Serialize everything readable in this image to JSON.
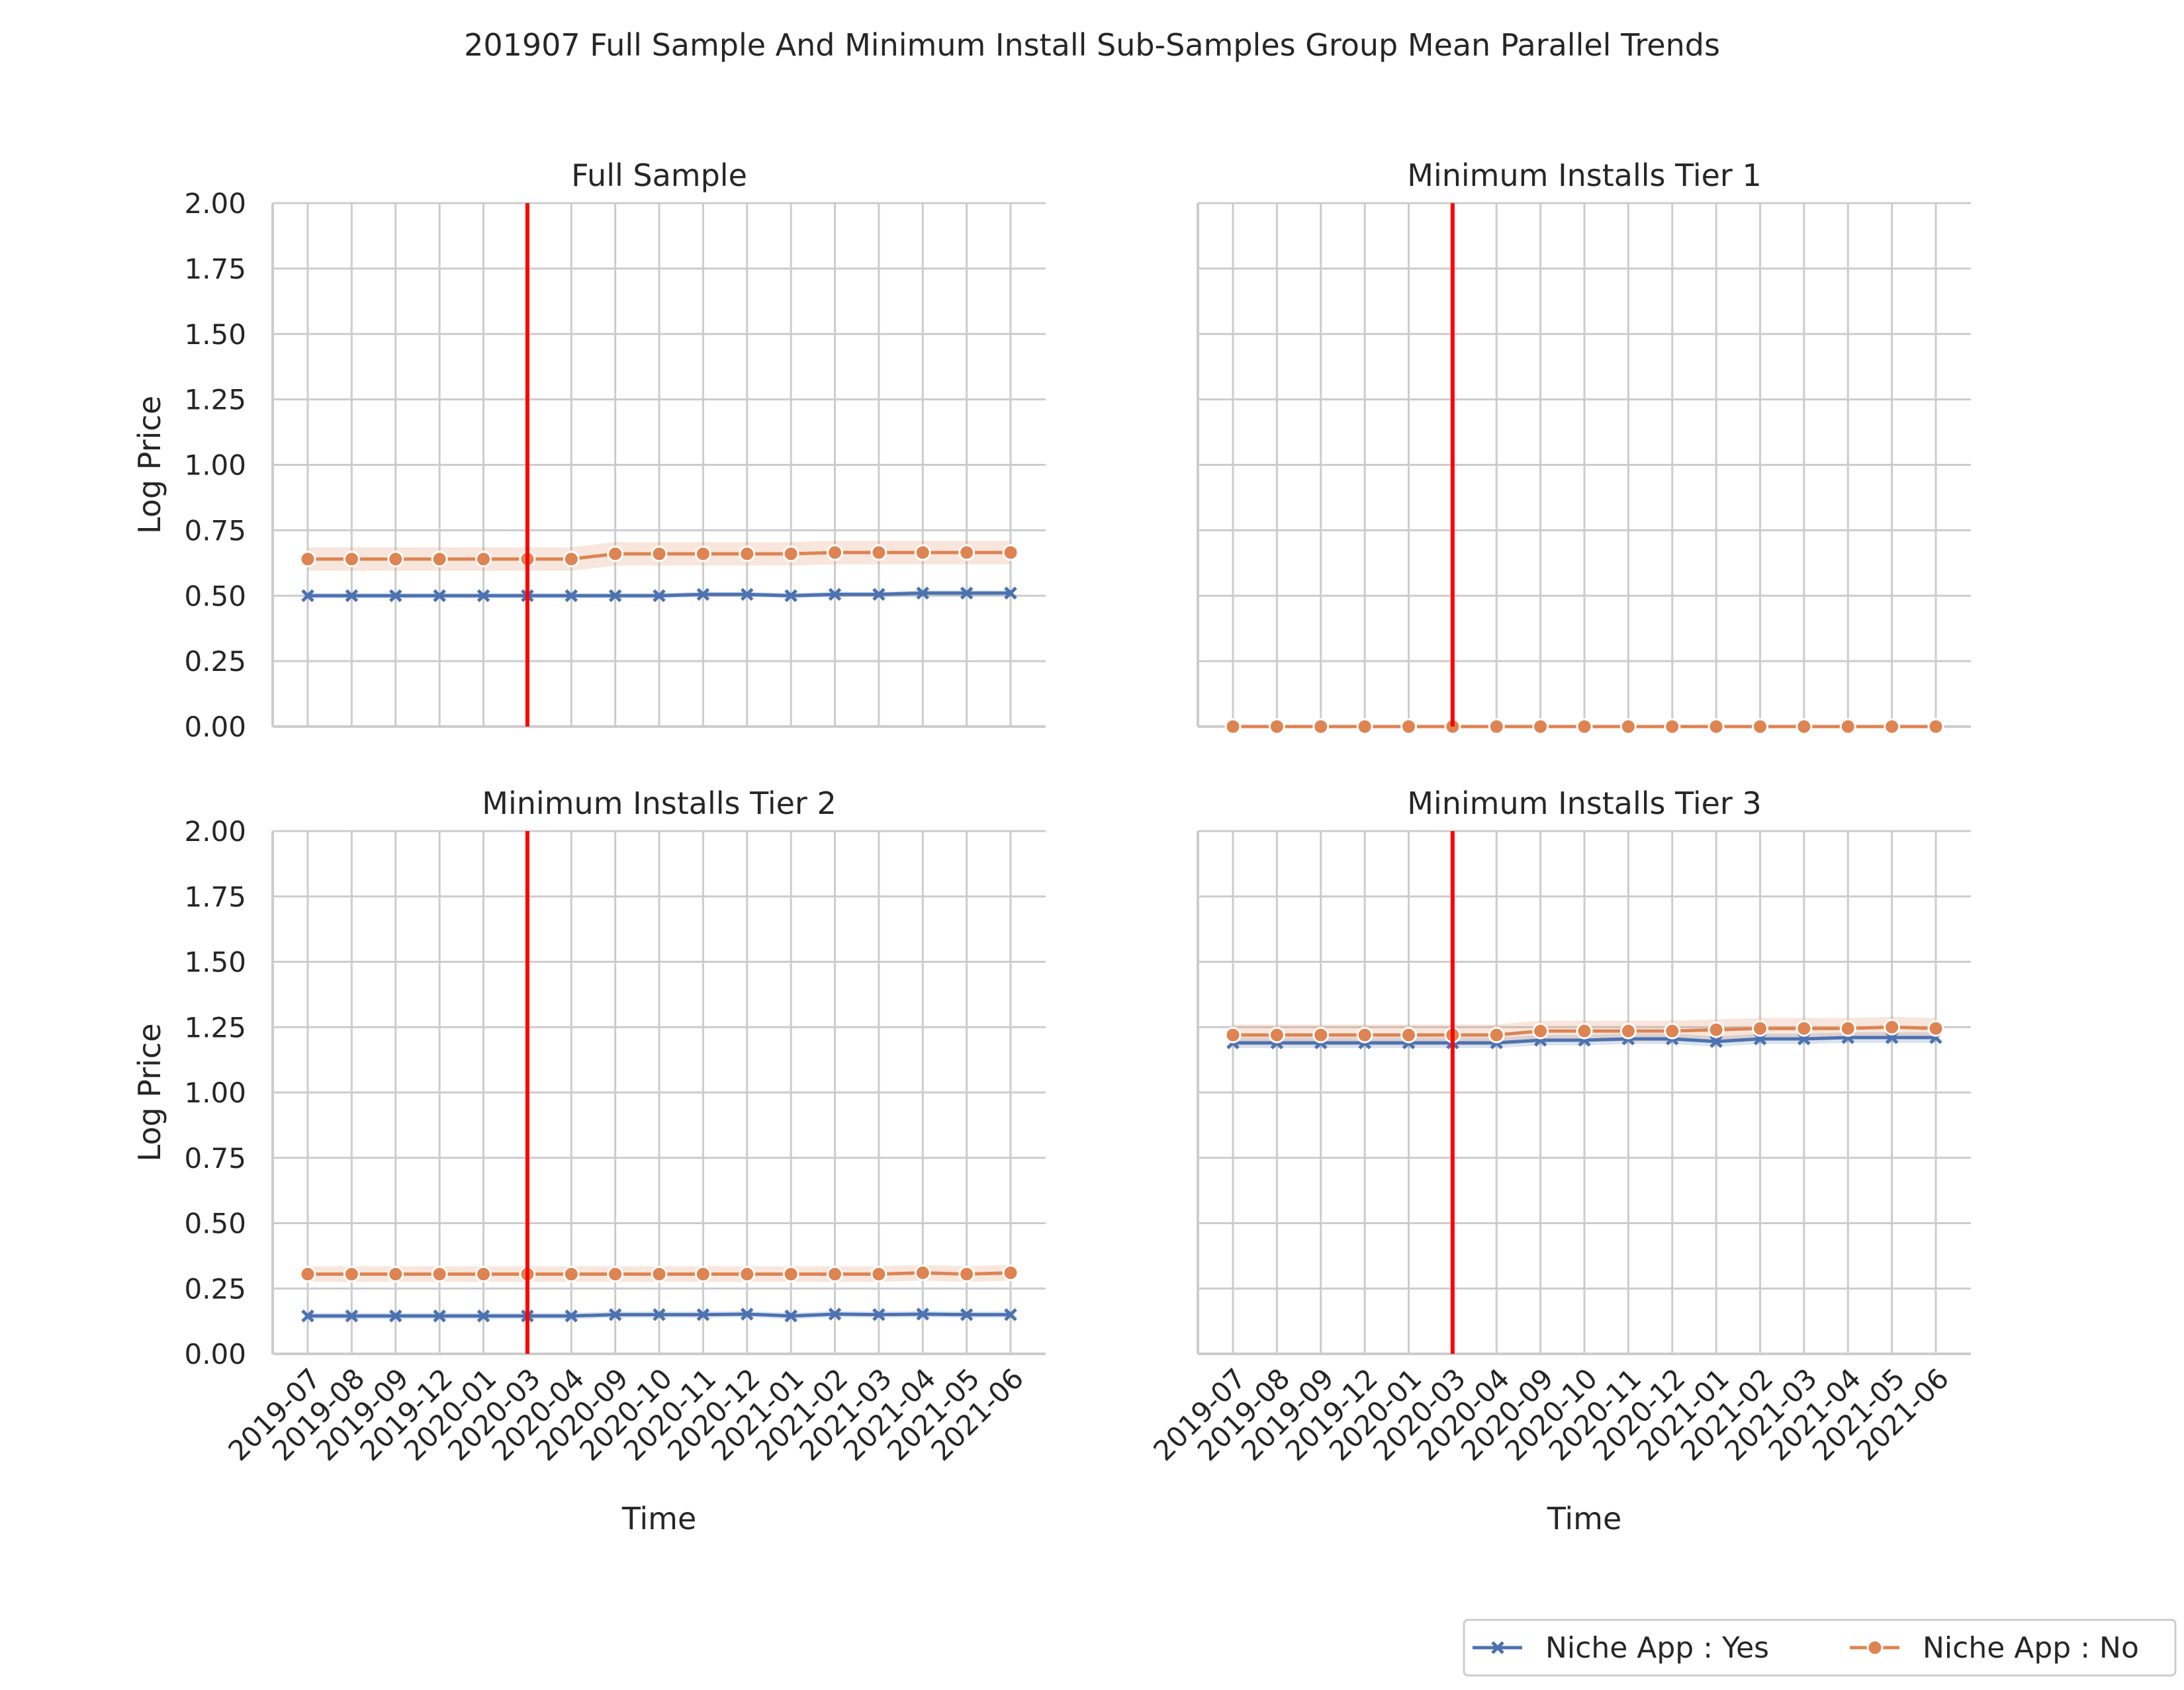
{
  "figure": {
    "title": "201907 Full Sample And Minimum Install Sub-Samples Group Mean Parallel Trends"
  },
  "colors": {
    "yes": "#4c72b0",
    "no": "#dd8452",
    "treatment_line": "#ff0000",
    "grid": "#cccccc"
  },
  "legend": {
    "placement": "bottom-right",
    "items": [
      {
        "label": "Niche App : Yes",
        "marker": "x",
        "color": "#4c72b0"
      },
      {
        "label": "Niche App : No",
        "marker": "circle",
        "color": "#dd8452"
      }
    ]
  },
  "chart_data": [
    {
      "type": "line",
      "title": "Full Sample",
      "xlabel": "",
      "ylabel": "Log Price",
      "ylim": [
        0,
        2
      ],
      "yticks": [
        "0.00",
        "0.25",
        "0.50",
        "0.75",
        "1.00",
        "1.25",
        "1.50",
        "1.75",
        "2.00"
      ],
      "grid": true,
      "x": [
        "2019-07",
        "2019-08",
        "2019-09",
        "2019-12",
        "2020-01",
        "2020-03",
        "2020-04",
        "2020-09",
        "2020-10",
        "2020-11",
        "2020-12",
        "2021-01",
        "2021-02",
        "2021-03",
        "2021-04",
        "2021-05",
        "2021-06"
      ],
      "show_xticklabels": false,
      "treatment_x": "2020-03",
      "series": [
        {
          "name": "Niche App : Yes",
          "values": [
            0.5,
            0.5,
            0.5,
            0.5,
            0.5,
            0.5,
            0.5,
            0.5,
            0.5,
            0.505,
            0.505,
            0.5,
            0.505,
            0.505,
            0.51,
            0.51,
            0.51
          ],
          "ci": 0.01
        },
        {
          "name": "Niche App : No",
          "values": [
            0.64,
            0.64,
            0.64,
            0.64,
            0.64,
            0.64,
            0.64,
            0.66,
            0.66,
            0.66,
            0.66,
            0.66,
            0.665,
            0.665,
            0.665,
            0.665,
            0.665
          ],
          "ci": 0.045
        }
      ]
    },
    {
      "type": "line",
      "title": "Minimum Installs Tier 1",
      "xlabel": "",
      "ylabel": "",
      "ylim": [
        0,
        2
      ],
      "yticks": [],
      "grid": true,
      "x": [
        "2019-07",
        "2019-08",
        "2019-09",
        "2019-12",
        "2020-01",
        "2020-03",
        "2020-04",
        "2020-09",
        "2020-10",
        "2020-11",
        "2020-12",
        "2021-01",
        "2021-02",
        "2021-03",
        "2021-04",
        "2021-05",
        "2021-06"
      ],
      "show_xticklabels": false,
      "treatment_x": "2020-03",
      "series": [
        {
          "name": "Niche App : Yes",
          "values": [
            0,
            0,
            0,
            0,
            0,
            0,
            0,
            0,
            0,
            0,
            0,
            0,
            0,
            0,
            0,
            0,
            0
          ],
          "ci": 0
        },
        {
          "name": "Niche App : No",
          "values": [
            0,
            0,
            0,
            0,
            0,
            0,
            0,
            0,
            0,
            0,
            0,
            0,
            0,
            0,
            0,
            0,
            0
          ],
          "ci": 0
        }
      ]
    },
    {
      "type": "line",
      "title": "Minimum Installs Tier 2",
      "xlabel": "Time",
      "ylabel": "Log Price",
      "ylim": [
        0,
        2
      ],
      "yticks": [
        "0.00",
        "0.25",
        "0.50",
        "0.75",
        "1.00",
        "1.25",
        "1.50",
        "1.75",
        "2.00"
      ],
      "grid": true,
      "x": [
        "2019-07",
        "2019-08",
        "2019-09",
        "2019-12",
        "2020-01",
        "2020-03",
        "2020-04",
        "2020-09",
        "2020-10",
        "2020-11",
        "2020-12",
        "2021-01",
        "2021-02",
        "2021-03",
        "2021-04",
        "2021-05",
        "2021-06"
      ],
      "show_xticklabels": true,
      "treatment_x": "2020-03",
      "series": [
        {
          "name": "Niche App : Yes",
          "values": [
            0.145,
            0.145,
            0.145,
            0.145,
            0.145,
            0.145,
            0.145,
            0.15,
            0.15,
            0.15,
            0.152,
            0.145,
            0.152,
            0.15,
            0.152,
            0.15,
            0.15
          ],
          "ci": 0.012
        },
        {
          "name": "Niche App : No",
          "values": [
            0.305,
            0.305,
            0.305,
            0.305,
            0.305,
            0.305,
            0.305,
            0.305,
            0.305,
            0.305,
            0.305,
            0.305,
            0.305,
            0.305,
            0.31,
            0.305,
            0.31
          ],
          "ci": 0.03
        }
      ]
    },
    {
      "type": "line",
      "title": "Minimum Installs Tier 3",
      "xlabel": "Time",
      "ylabel": "",
      "ylim": [
        0,
        2
      ],
      "yticks": [],
      "grid": true,
      "x": [
        "2019-07",
        "2019-08",
        "2019-09",
        "2019-12",
        "2020-01",
        "2020-03",
        "2020-04",
        "2020-09",
        "2020-10",
        "2020-11",
        "2020-12",
        "2021-01",
        "2021-02",
        "2021-03",
        "2021-04",
        "2021-05",
        "2021-06"
      ],
      "show_xticklabels": true,
      "treatment_x": "2020-03",
      "series": [
        {
          "name": "Niche App : Yes",
          "values": [
            1.19,
            1.19,
            1.19,
            1.19,
            1.19,
            1.19,
            1.19,
            1.2,
            1.2,
            1.205,
            1.205,
            1.195,
            1.205,
            1.205,
            1.21,
            1.21,
            1.21
          ],
          "ci": 0.02
        },
        {
          "name": "Niche App : No",
          "values": [
            1.22,
            1.22,
            1.22,
            1.22,
            1.22,
            1.22,
            1.22,
            1.235,
            1.235,
            1.235,
            1.235,
            1.24,
            1.245,
            1.245,
            1.245,
            1.25,
            1.245
          ],
          "ci": 0.04
        }
      ]
    }
  ]
}
